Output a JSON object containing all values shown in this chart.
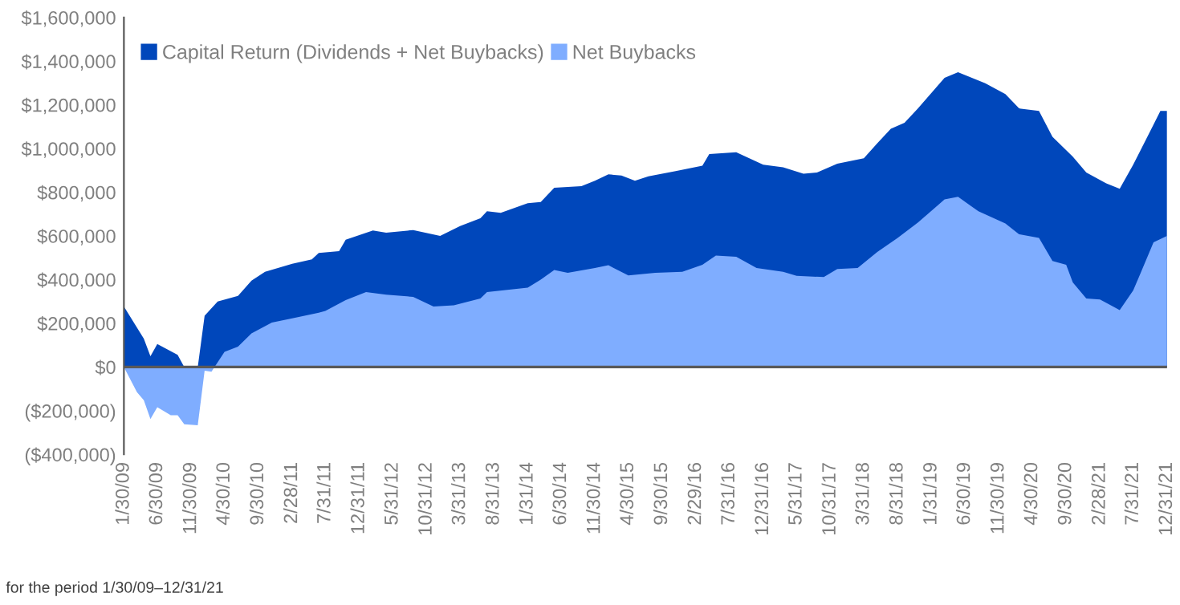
{
  "chart_data": {
    "type": "area",
    "series": [
      {
        "name": "Capital Return (Dividends + Net Buybacks)",
        "color": "#0047bb",
        "x": [
          "2009-01",
          "2009-04",
          "2009-05",
          "2009-06",
          "2009-09",
          "2009-10",
          "2009-12",
          "2010-01",
          "2010-03",
          "2010-06",
          "2010-08",
          "2010-10",
          "2011-02",
          "2011-05",
          "2011-06",
          "2011-09",
          "2011-10",
          "2012-02",
          "2012-04",
          "2012-08",
          "2012-12",
          "2013-03",
          "2013-06",
          "2013-07",
          "2013-09",
          "2014-01",
          "2014-03",
          "2014-05",
          "2014-09",
          "2014-11",
          "2015-01",
          "2015-03",
          "2015-05",
          "2015-07",
          "2015-11",
          "2016-03",
          "2016-04",
          "2016-08",
          "2016-12",
          "2017-03",
          "2017-06",
          "2017-08",
          "2017-11",
          "2018-03",
          "2018-05",
          "2018-07",
          "2018-09",
          "2018-11",
          "2019-03",
          "2019-05",
          "2019-09",
          "2019-12",
          "2020-02",
          "2020-05",
          "2020-07",
          "2020-10",
          "2020-12",
          "2021-03",
          "2021-05",
          "2021-07",
          "2021-08",
          "2021-10",
          "2021-11",
          "2021-12"
        ],
        "values": [
          277000,
          130000,
          49000,
          105000,
          56000,
          0,
          0,
          235000,
          300000,
          326000,
          395000,
          436000,
          473000,
          493000,
          522000,
          530000,
          583000,
          625000,
          615000,
          627000,
          600000,
          645000,
          681000,
          713000,
          706000,
          750000,
          755000,
          821000,
          828000,
          853000,
          882000,
          877000,
          853000,
          873000,
          897000,
          922000,
          975000,
          983000,
          926000,
          914000,
          885000,
          890000,
          931000,
          956000,
          1025000,
          1091000,
          1118000,
          1184000,
          1324000,
          1350000,
          1299000,
          1250000,
          1184000,
          1172000,
          1054000,
          963000,
          890000,
          841000,
          816000,
          926000,
          988000,
          1110000,
          1172000,
          1172000
        ]
      },
      {
        "name": "Net Buybacks",
        "color": "#7fadff",
        "x": [
          "2009-01",
          "2009-03",
          "2009-04",
          "2009-05",
          "2009-06",
          "2009-08",
          "2009-09",
          "2009-10",
          "2009-12",
          "2010-01",
          "2010-02",
          "2010-04",
          "2010-06",
          "2010-08",
          "2010-11",
          "2011-02",
          "2011-06",
          "2011-07",
          "2011-10",
          "2012-01",
          "2012-04",
          "2012-08",
          "2012-11",
          "2013-02",
          "2013-06",
          "2013-07",
          "2014-01",
          "2014-03",
          "2014-05",
          "2014-07",
          "2014-11",
          "2015-01",
          "2015-04",
          "2015-08",
          "2015-12",
          "2016-03",
          "2016-05",
          "2016-08",
          "2016-11",
          "2017-03",
          "2017-05",
          "2017-09",
          "2017-11",
          "2018-02",
          "2018-05",
          "2018-08",
          "2018-11",
          "2019-03",
          "2019-05",
          "2019-08",
          "2019-12",
          "2020-02",
          "2020-05",
          "2020-07",
          "2020-09",
          "2020-10",
          "2020-12",
          "2021-02",
          "2021-04",
          "2021-05",
          "2021-07",
          "2021-08",
          "2021-10",
          "2021-12"
        ],
        "values": [
          0,
          -115000,
          -152000,
          -238000,
          -184000,
          -221000,
          -221000,
          -262000,
          -267000,
          -17000,
          -22000,
          69000,
          93000,
          154000,
          203000,
          223000,
          248000,
          257000,
          306000,
          343000,
          331000,
          321000,
          277000,
          282000,
          314000,
          343000,
          363000,
          400000,
          444000,
          431000,
          453000,
          466000,
          419000,
          431000,
          436000,
          468000,
          510000,
          505000,
          453000,
          436000,
          417000,
          412000,
          449000,
          453000,
          527000,
          591000,
          662000,
          767000,
          779000,
          713000,
          657000,
          608000,
          591000,
          485000,
          468000,
          387000,
          314000,
          309000,
          277000,
          260000,
          350000,
          424000,
          571000,
          600000
        ]
      }
    ],
    "xlim": [
      "2009-01",
      "2021-12"
    ],
    "xticks": [
      {
        "value": "2009-01",
        "label": "1/30/09"
      },
      {
        "value": "2009-06",
        "label": "6/30/09"
      },
      {
        "value": "2009-11",
        "label": "11/30/09"
      },
      {
        "value": "2010-04",
        "label": "4/30/10"
      },
      {
        "value": "2010-09",
        "label": "9/30/10"
      },
      {
        "value": "2011-02",
        "label": "2/28/11"
      },
      {
        "value": "2011-07",
        "label": "7/31/11"
      },
      {
        "value": "2011-12",
        "label": "12/31/11"
      },
      {
        "value": "2012-05",
        "label": "5/31/12"
      },
      {
        "value": "2012-10",
        "label": "10/31/12"
      },
      {
        "value": "2013-03",
        "label": "3/31/13"
      },
      {
        "value": "2013-08",
        "label": "8/31/13"
      },
      {
        "value": "2014-01",
        "label": "1/31/14"
      },
      {
        "value": "2014-06",
        "label": "6/30/14"
      },
      {
        "value": "2014-11",
        "label": "11/30/14"
      },
      {
        "value": "2015-04",
        "label": "4/30/15"
      },
      {
        "value": "2015-09",
        "label": "9/30/15"
      },
      {
        "value": "2016-02",
        "label": "2/29/16"
      },
      {
        "value": "2016-07",
        "label": "7/31/16"
      },
      {
        "value": "2016-12",
        "label": "12/31/16"
      },
      {
        "value": "2017-05",
        "label": "5/31/17"
      },
      {
        "value": "2017-10",
        "label": "10/31/17"
      },
      {
        "value": "2018-03",
        "label": "3/31/18"
      },
      {
        "value": "2018-08",
        "label": "8/31/18"
      },
      {
        "value": "2019-01",
        "label": "1/31/19"
      },
      {
        "value": "2019-06",
        "label": "6/30/19"
      },
      {
        "value": "2019-11",
        "label": "11/30/19"
      },
      {
        "value": "2020-04",
        "label": "4/30/20"
      },
      {
        "value": "2020-09",
        "label": "9/30/20"
      },
      {
        "value": "2021-02",
        "label": "2/28/21"
      },
      {
        "value": "2021-07",
        "label": "7/31/21"
      },
      {
        "value": "2021-12",
        "label": "12/31/21"
      }
    ],
    "ylim": [
      -400000,
      1600000
    ],
    "yticks": [
      {
        "value": -400000,
        "label": "($400,000)"
      },
      {
        "value": -200000,
        "label": "($200,000)"
      },
      {
        "value": 0,
        "label": "$0"
      },
      {
        "value": 200000,
        "label": "$200,000"
      },
      {
        "value": 400000,
        "label": "$400,000"
      },
      {
        "value": 600000,
        "label": "$600,000"
      },
      {
        "value": 800000,
        "label": "$800,000"
      },
      {
        "value": 1000000,
        "label": "$1,000,000"
      },
      {
        "value": 1200000,
        "label": "$1,200,000"
      },
      {
        "value": 1400000,
        "label": "$1,400,000"
      },
      {
        "value": 1600000,
        "label": "$1,600,000"
      }
    ],
    "ref_lines": [
      {
        "axis": "y",
        "value": 0,
        "color": "#595959"
      }
    ],
    "grid": false,
    "legend": "top left",
    "annotations": [
      "for the period 1/30/09–12/31/21"
    ]
  }
}
